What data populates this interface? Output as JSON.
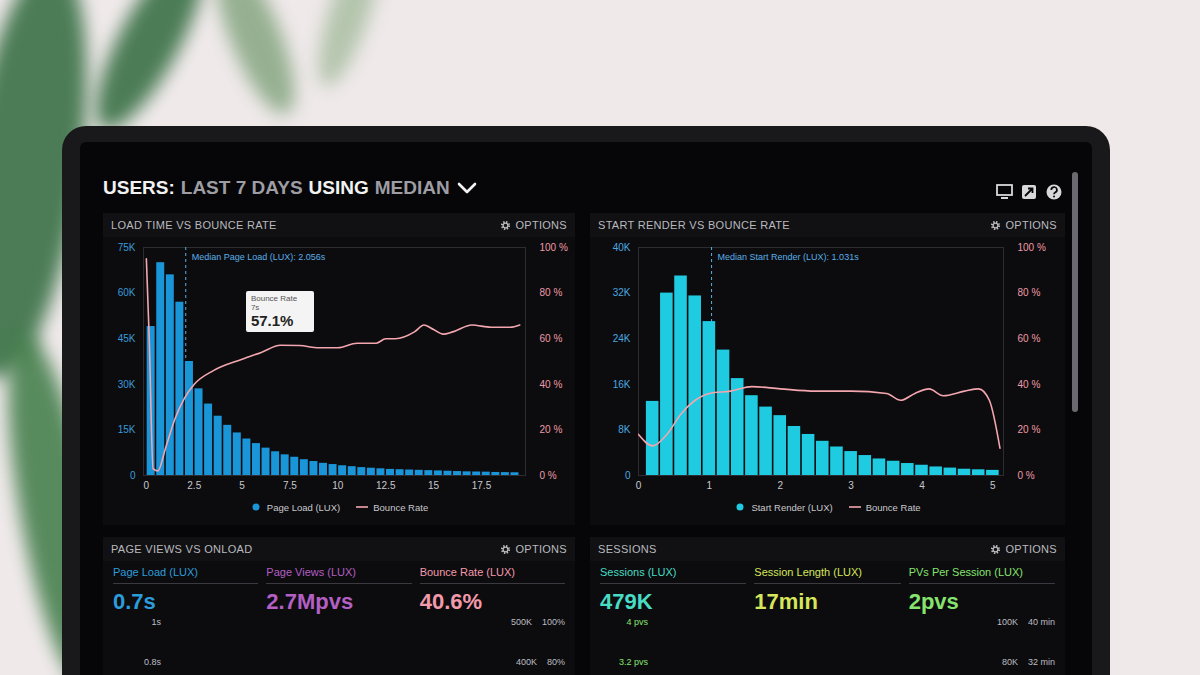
{
  "header": {
    "title_parts": [
      "USERS:",
      "LAST 7 DAYS",
      "USING",
      "MEDIAN"
    ],
    "options_label": "OPTIONS"
  },
  "chart_data": [
    {
      "type": "histogram",
      "title": "LOAD TIME VS BOUNCE RATE",
      "bins": [
        0,
        0.5,
        1,
        1.5,
        2,
        2.5,
        3,
        3.5,
        4,
        4.5,
        5,
        5.5,
        6,
        6.5,
        7,
        7.5,
        8,
        8.5,
        9,
        9.5,
        10,
        10.5,
        11,
        11.5,
        12,
        12.5,
        13,
        13.5,
        14,
        14.5,
        15,
        15.5,
        16,
        16.5,
        17,
        17.5,
        18,
        18.5,
        19,
        19.5
      ],
      "xlim": [
        -0.15,
        19.8
      ],
      "xticks": [
        0,
        2.5,
        5,
        7.5,
        10,
        12.5,
        15,
        17.5
      ],
      "ylim": [
        0,
        75000
      ],
      "yticks": [
        0,
        {
          "value": 15000,
          "label": "15K"
        },
        {
          "value": 30000,
          "label": "30K"
        },
        {
          "value": 45000,
          "label": "45K"
        },
        {
          "value": 60000,
          "label": "60K"
        },
        {
          "value": 75000,
          "label": "75K"
        }
      ],
      "y2lim": [
        0,
        100
      ],
      "y2ticks": [
        {
          "value": 0,
          "label": "0 %"
        },
        {
          "value": 20,
          "label": "20 %"
        },
        {
          "value": 40,
          "label": "40 %"
        },
        {
          "value": 60,
          "label": "60 %"
        },
        {
          "value": 80,
          "label": "80 %"
        },
        {
          "value": 100,
          "label": "100 %"
        }
      ],
      "legend": "bottom",
      "series": [
        {
          "name": "Page Load (LUX)",
          "type": "bar",
          "color": "#1a95d8",
          "values": [
            49000,
            70000,
            66000,
            57000,
            37500,
            28500,
            23500,
            19500,
            16500,
            14000,
            12000,
            10500,
            9000,
            7800,
            6800,
            6000,
            5200,
            4600,
            4000,
            3600,
            3200,
            2900,
            2600,
            2400,
            2200,
            2000,
            1900,
            1800,
            1700,
            1600,
            1500,
            1400,
            1300,
            1200,
            1150,
            1100,
            1000,
            950,
            900
          ]
        },
        {
          "name": "Bounce Rate",
          "type": "line",
          "axis": "y2",
          "color": "#f3a6ae",
          "x": [
            0,
            0.15,
            0.35,
            0.6,
            1.0,
            1.5,
            2.0,
            2.5,
            3.5,
            5,
            6,
            7,
            8,
            9,
            10,
            11,
            12,
            12.5,
            13,
            14,
            14.5,
            15,
            15.5,
            16,
            17,
            18,
            19,
            19.5
          ],
          "values": [
            95,
            60,
            3,
            2,
            12,
            25,
            34,
            40,
            46,
            51,
            54,
            57.1,
            57,
            56,
            56,
            58,
            58,
            60,
            60,
            63,
            66,
            64,
            62,
            63,
            66,
            65,
            65,
            66
          ]
        }
      ],
      "annotations": [
        {
          "text": "Median Page Load (LUX): 2.056s",
          "x": 2.056
        }
      ],
      "tooltip": {
        "title": "Bounce Rate",
        "x": 7,
        "x_label": "7s",
        "value": 57.1,
        "value_label": "57.1%"
      }
    },
    {
      "type": "histogram",
      "title": "START RENDER VS BOUNCE RATE",
      "bins": [
        0.1,
        0.3,
        0.5,
        0.7,
        0.9,
        1.1,
        1.3,
        1.5,
        1.7,
        1.9,
        2.1,
        2.3,
        2.5,
        2.7,
        2.9,
        3.1,
        3.3,
        3.5,
        3.7,
        3.9,
        4.1,
        4.3,
        4.5,
        4.7,
        4.9,
        5.1
      ],
      "xlim": [
        0,
        5.15
      ],
      "xticks": [
        0,
        1,
        2,
        3,
        4,
        5
      ],
      "ylim": [
        0,
        40000
      ],
      "yticks": [
        0,
        {
          "value": 8000,
          "label": "8K"
        },
        {
          "value": 16000,
          "label": "16K"
        },
        {
          "value": 24000,
          "label": "24K"
        },
        {
          "value": 32000,
          "label": "32K"
        },
        {
          "value": 40000,
          "label": "40K"
        }
      ],
      "y2lim": [
        0,
        100
      ],
      "y2ticks": [
        {
          "value": 0,
          "label": "0 %"
        },
        {
          "value": 20,
          "label": "20 %"
        },
        {
          "value": 40,
          "label": "40 %"
        },
        {
          "value": 60,
          "label": "60 %"
        },
        {
          "value": 80,
          "label": "80 %"
        },
        {
          "value": 100,
          "label": "100 %"
        }
      ],
      "legend": "bottom",
      "series": [
        {
          "name": "Start Render (LUX)",
          "type": "bar",
          "color": "#1ecbe1",
          "values": [
            13000,
            32000,
            35000,
            31500,
            27000,
            22000,
            17000,
            14000,
            12000,
            10500,
            8600,
            7200,
            6000,
            5000,
            4200,
            3500,
            2900,
            2500,
            2100,
            1800,
            1500,
            1300,
            1100,
            1000,
            900
          ]
        },
        {
          "name": "Bounce Rate",
          "type": "line",
          "axis": "y2",
          "color": "#f3a6ae",
          "x": [
            0,
            0.2,
            0.4,
            0.6,
            0.8,
            1.0,
            1.3,
            1.6,
            2.0,
            2.5,
            3.0,
            3.5,
            3.7,
            3.9,
            4.1,
            4.3,
            4.6,
            4.8,
            4.95,
            5.1
          ],
          "values": [
            18,
            13,
            18,
            27,
            33,
            36,
            37,
            39,
            38,
            37,
            37,
            36,
            33,
            36,
            38,
            35,
            37,
            38,
            33,
            12
          ]
        }
      ],
      "annotations": [
        {
          "text": "Median Start Render (LUX): 1.031s",
          "x": 1.031
        }
      ]
    }
  ],
  "panels": [
    {
      "title": "PAGE VIEWS VS ONLOAD",
      "metrics": [
        {
          "label": "Page Load (LUX)",
          "value": "0.7s",
          "color": "#2d9cdb"
        },
        {
          "label": "Page Views (LUX)",
          "value": "2.7Mpvs",
          "color": "#b45fc4"
        },
        {
          "label": "Bounce Rate (LUX)",
          "value": "40.6%",
          "color": "#f29aaa"
        }
      ],
      "mini_axes": {
        "left": [
          "1s",
          "0.8s"
        ],
        "right": [
          [
            "500K",
            "100%"
          ],
          [
            "400K",
            "80%"
          ]
        ]
      }
    },
    {
      "title": "SESSIONS",
      "metrics": [
        {
          "label": "Sessions (LUX)",
          "value": "479K",
          "color": "#48dcc4"
        },
        {
          "label": "Session Length (LUX)",
          "value": "17min",
          "color": "#d6e65a"
        },
        {
          "label": "PVs Per Session (LUX)",
          "value": "2pvs",
          "color": "#86e36e"
        }
      ],
      "mini_axes": {
        "left": [
          "4 pvs",
          "3.2 pvs"
        ],
        "right": [
          [
            "100K",
            "40 min"
          ],
          [
            "80K",
            "32 min"
          ]
        ]
      }
    }
  ]
}
